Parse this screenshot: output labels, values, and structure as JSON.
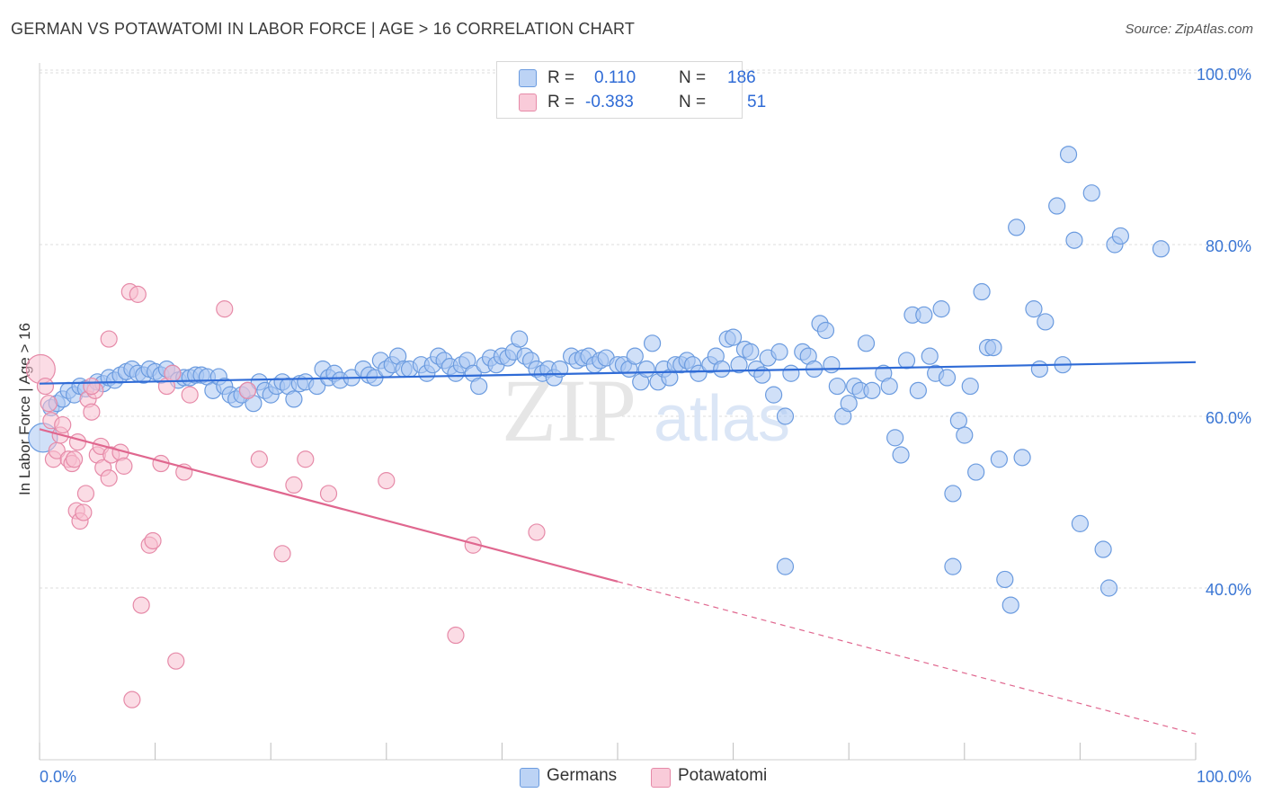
{
  "header": {
    "title": "GERMAN VS POTAWATOMI IN LABOR FORCE | AGE > 16 CORRELATION CHART",
    "source": "Source: ZipAtlas.com"
  },
  "watermark": {
    "zip": "ZIP",
    "atlas": "atlas"
  },
  "legend": {
    "germans": {
      "r_label": "R =",
      "r_value": "0.110",
      "n_label": "N =",
      "n_value": "186"
    },
    "potawatomi": {
      "r_label": "R =",
      "r_value": "-0.383",
      "n_label": "N =",
      "n_value": "51"
    }
  },
  "bottom_legend": {
    "germans": "Germans",
    "potawatomi": "Potawatomi"
  },
  "chart_data": {
    "type": "scatter",
    "title": "GERMAN VS POTAWATOMI IN LABOR FORCE | AGE > 16 CORRELATION CHART",
    "ylabel": "In Labor Force | Age > 16",
    "xlabel": "",
    "xlim": [
      0,
      100
    ],
    "ylim": [
      20,
      105
    ],
    "x_tick_labels": [
      "0.0%",
      "100.0%"
    ],
    "y_ticks": [
      40,
      60,
      80,
      100
    ],
    "y_tick_labels": [
      "40.0%",
      "60.0%",
      "80.0%",
      "100.0%"
    ],
    "grid": true,
    "legend_position": "top-center",
    "colors": {
      "germans_fill": "#a9c6f2",
      "germans_stroke": "#6b9bdf",
      "germans_line": "#2f6bd6",
      "potawatomi_fill": "#f7bfd0",
      "potawatomi_stroke": "#e68aa8",
      "potawatomi_line": "#e0678f",
      "tick_label": "#3a76d4",
      "grid": "#dddddd"
    },
    "series": [
      {
        "name": "Germans",
        "trend": {
          "x": [
            0,
            100
          ],
          "y": [
            63.8,
            66.3
          ],
          "solid_to": 100
        },
        "points": [
          [
            0.3,
            57.5
          ],
          [
            1.0,
            61
          ],
          [
            1.5,
            61.5
          ],
          [
            2,
            62
          ],
          [
            2.5,
            63
          ],
          [
            3,
            62.5
          ],
          [
            3.5,
            63.5
          ],
          [
            4,
            63.2
          ],
          [
            5,
            64
          ],
          [
            5.5,
            63.8
          ],
          [
            6,
            64.5
          ],
          [
            6.5,
            64.2
          ],
          [
            7,
            64.8
          ],
          [
            7.5,
            65.2
          ],
          [
            8,
            65.5
          ],
          [
            8.5,
            65
          ],
          [
            9,
            64.8
          ],
          [
            9.5,
            65.5
          ],
          [
            10,
            65.2
          ],
          [
            10.5,
            64.8
          ],
          [
            11,
            65.5
          ],
          [
            11.5,
            65
          ],
          [
            12,
            64.2
          ],
          [
            12.5,
            64.5
          ],
          [
            13,
            64.5
          ],
          [
            13.5,
            64.8
          ],
          [
            14,
            64.8
          ],
          [
            14.5,
            64.6
          ],
          [
            15,
            63
          ],
          [
            15.5,
            64.6
          ],
          [
            16,
            63.5
          ],
          [
            16.5,
            62.5
          ],
          [
            17,
            62
          ],
          [
            17.5,
            62.5
          ],
          [
            18,
            63
          ],
          [
            18.5,
            61.5
          ],
          [
            19,
            64
          ],
          [
            19.5,
            63
          ],
          [
            20,
            62.5
          ],
          [
            20.5,
            63.5
          ],
          [
            21,
            64
          ],
          [
            21.5,
            63.5
          ],
          [
            22,
            62
          ],
          [
            22.5,
            63.8
          ],
          [
            23,
            64
          ],
          [
            24,
            63.5
          ],
          [
            24.5,
            65.5
          ],
          [
            25,
            64.5
          ],
          [
            25.5,
            65
          ],
          [
            26,
            64.2
          ],
          [
            27,
            64.5
          ],
          [
            28,
            65.5
          ],
          [
            28.5,
            64.8
          ],
          [
            29,
            64.5
          ],
          [
            29.5,
            66.5
          ],
          [
            30,
            65.5
          ],
          [
            30.5,
            66
          ],
          [
            31,
            67
          ],
          [
            31.5,
            65.5
          ],
          [
            32,
            65.5
          ],
          [
            33,
            66
          ],
          [
            33.5,
            65
          ],
          [
            34,
            66
          ],
          [
            34.5,
            67
          ],
          [
            35,
            66.5
          ],
          [
            35.5,
            65.8
          ],
          [
            36,
            65
          ],
          [
            36.5,
            66
          ],
          [
            37,
            66.5
          ],
          [
            37.5,
            65
          ],
          [
            38,
            63.5
          ],
          [
            38.5,
            66
          ],
          [
            39,
            66.8
          ],
          [
            39.5,
            66
          ],
          [
            40,
            67
          ],
          [
            40.5,
            66.8
          ],
          [
            41,
            67.5
          ],
          [
            41.5,
            69
          ],
          [
            42,
            67
          ],
          [
            42.5,
            66.5
          ],
          [
            43,
            65.5
          ],
          [
            43.5,
            65
          ],
          [
            44,
            65.5
          ],
          [
            44.5,
            64.5
          ],
          [
            45,
            65.5
          ],
          [
            46,
            67
          ],
          [
            46.5,
            66.5
          ],
          [
            47,
            66.8
          ],
          [
            47.5,
            67
          ],
          [
            48,
            66
          ],
          [
            48.5,
            66.5
          ],
          [
            49,
            66.8
          ],
          [
            50,
            66
          ],
          [
            50.5,
            66
          ],
          [
            51,
            65.5
          ],
          [
            51.5,
            67
          ],
          [
            52,
            64
          ],
          [
            52.5,
            65.5
          ],
          [
            53,
            68.5
          ],
          [
            53.5,
            64
          ],
          [
            54,
            65.5
          ],
          [
            54.5,
            64.5
          ],
          [
            55,
            66
          ],
          [
            55.5,
            66
          ],
          [
            56,
            66.5
          ],
          [
            56.5,
            66
          ],
          [
            57,
            65
          ],
          [
            58,
            66
          ],
          [
            58.5,
            67
          ],
          [
            59,
            65.5
          ],
          [
            59.5,
            69
          ],
          [
            60,
            69.2
          ],
          [
            60.5,
            66
          ],
          [
            61,
            67.8
          ],
          [
            61.5,
            67.5
          ],
          [
            62,
            65.5
          ],
          [
            62.5,
            64.8
          ],
          [
            63,
            66.8
          ],
          [
            63.5,
            62.5
          ],
          [
            64,
            67.5
          ],
          [
            64.5,
            60
          ],
          [
            65,
            65
          ],
          [
            66,
            67.5
          ],
          [
            66.5,
            67
          ],
          [
            67,
            65.5
          ],
          [
            67.5,
            70.8
          ],
          [
            68,
            70
          ],
          [
            68.5,
            66
          ],
          [
            69,
            63.5
          ],
          [
            69.5,
            60
          ],
          [
            70,
            61.5
          ],
          [
            70.5,
            63.5
          ],
          [
            71,
            63
          ],
          [
            71.5,
            68.5
          ],
          [
            72,
            63
          ],
          [
            73,
            65
          ],
          [
            73.5,
            63.5
          ],
          [
            74,
            57.5
          ],
          [
            74.5,
            55.5
          ],
          [
            75,
            66.5
          ],
          [
            75.5,
            71.8
          ],
          [
            76,
            63
          ],
          [
            76.5,
            71.8
          ],
          [
            77,
            67
          ],
          [
            77.5,
            65
          ],
          [
            78,
            72.5
          ],
          [
            78.5,
            64.5
          ],
          [
            79,
            51
          ],
          [
            79.5,
            59.5
          ],
          [
            80,
            57.8
          ],
          [
            80.5,
            63.5
          ],
          [
            81,
            53.5
          ],
          [
            81.5,
            74.5
          ],
          [
            82,
            68
          ],
          [
            82.5,
            68
          ],
          [
            83,
            55
          ],
          [
            83.5,
            41
          ],
          [
            84,
            38
          ],
          [
            84.5,
            82
          ],
          [
            85,
            55.2
          ],
          [
            86,
            72.5
          ],
          [
            86.5,
            65.5
          ],
          [
            87,
            71
          ],
          [
            88,
            84.5
          ],
          [
            88.5,
            66
          ],
          [
            89,
            90.5
          ],
          [
            89.5,
            80.5
          ],
          [
            90,
            47.5
          ],
          [
            91,
            86
          ],
          [
            92,
            44.5
          ],
          [
            92.5,
            40
          ],
          [
            93,
            80
          ],
          [
            93.5,
            81
          ],
          [
            97,
            79.5
          ],
          [
            64.5,
            42.5
          ],
          [
            79,
            42.5
          ]
        ]
      },
      {
        "name": "Potawatomi",
        "trend": {
          "x": [
            0,
            100
          ],
          "y": [
            58.5,
            23
          ],
          "solid_to": 50
        },
        "points": [
          [
            0.1,
            65.5
          ],
          [
            0.5,
            63.5
          ],
          [
            0.8,
            61.5
          ],
          [
            1.0,
            59.5
          ],
          [
            1.2,
            55
          ],
          [
            1.5,
            56
          ],
          [
            1.8,
            57.8
          ],
          [
            2.0,
            59
          ],
          [
            2.5,
            55
          ],
          [
            2.8,
            54.5
          ],
          [
            3.0,
            55
          ],
          [
            3.2,
            49
          ],
          [
            3.5,
            47.8
          ],
          [
            3.8,
            48.8
          ],
          [
            4.0,
            51
          ],
          [
            4.2,
            62
          ],
          [
            4.5,
            60.5
          ],
          [
            4.8,
            63
          ],
          [
            5.0,
            55.5
          ],
          [
            5.3,
            56.5
          ],
          [
            5.5,
            54
          ],
          [
            6.0,
            52.8
          ],
          [
            6.0,
            69
          ],
          [
            6.2,
            55.5
          ],
          [
            7.0,
            55.8
          ],
          [
            7.3,
            54.2
          ],
          [
            7.8,
            74.5
          ],
          [
            8.5,
            74.2
          ],
          [
            8.8,
            38
          ],
          [
            9.5,
            45
          ],
          [
            9.8,
            45.5
          ],
          [
            10.5,
            54.5
          ],
          [
            11,
            63.5
          ],
          [
            11.5,
            65
          ],
          [
            11.8,
            31.5
          ],
          [
            12.5,
            53.5
          ],
          [
            13,
            62.5
          ],
          [
            16,
            72.5
          ],
          [
            18,
            63
          ],
          [
            19,
            55
          ],
          [
            21,
            44
          ],
          [
            22,
            52
          ],
          [
            23,
            55
          ],
          [
            25,
            51
          ],
          [
            30,
            52.5
          ],
          [
            36,
            34.5
          ],
          [
            37.5,
            45
          ],
          [
            43,
            46.5
          ],
          [
            8,
            27
          ],
          [
            4.5,
            63.5
          ],
          [
            3.3,
            57
          ]
        ]
      }
    ]
  }
}
